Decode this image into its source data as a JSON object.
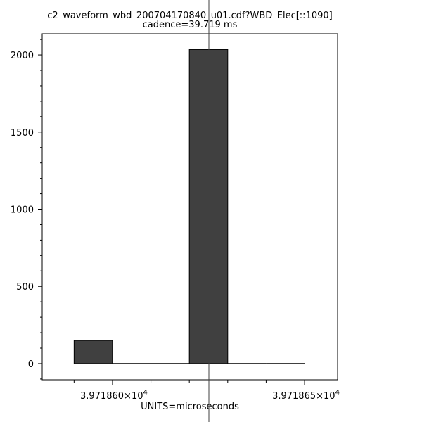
{
  "chart_data": {
    "type": "bar",
    "title": "c2_waveform_wbd_200704170840_u01.cdf?WBD_Elec[::1090]",
    "subtitle": "cadence=39.719 ms",
    "xlabel": "UNITS=microseconds",
    "ylabel": "",
    "bin_edges": [
      39718.59,
      39718.6,
      39718.61,
      39718.62,
      39718.63,
      39718.64,
      39718.65
    ],
    "values": [
      150,
      0,
      0,
      2035,
      0,
      0
    ],
    "xlim": [
      39718.5817,
      39718.6586
    ],
    "ylim": [
      -105,
      2137
    ],
    "x_ticks_major": [
      {
        "value": 39718.6,
        "mantissa": "3.971860",
        "exp": "4"
      },
      {
        "value": 39718.65,
        "mantissa": "3.971865",
        "exp": "4"
      }
    ],
    "x_ticks_minor": [
      39718.59,
      39718.61,
      39718.62,
      39718.63,
      39718.64
    ],
    "y_ticks_major": [
      0,
      500,
      1000,
      1500,
      2000
    ],
    "y_tick_labels": [
      "0",
      "500",
      "1000",
      "1500",
      "2000"
    ],
    "y_minor_step": 100,
    "grid": false,
    "bar_color": "#404040",
    "cursor_line_color": "#404040"
  }
}
